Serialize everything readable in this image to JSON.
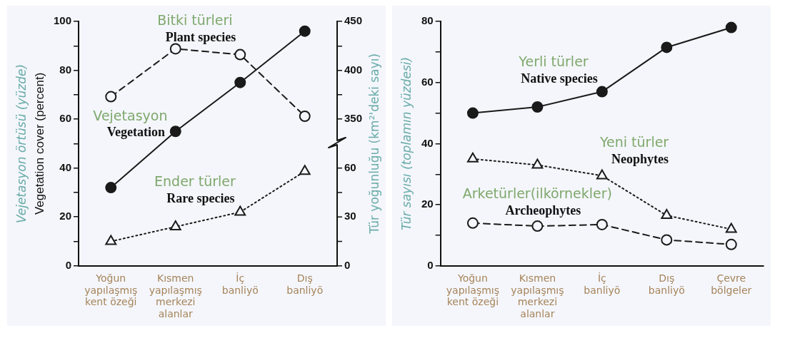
{
  "chart_data": [
    {
      "type": "line",
      "categories": [
        "Yoğun\nyapılaşmış\nkent özeği",
        "Kısmen\nyapılaşmış\nmerkezi\nalanlar",
        "İç\nbanliyö",
        "Dış\nbanliyö"
      ],
      "ylabel": "Vejetasyon örtüsü (yüzde)\nVegetation cover (percent)",
      "y2label": "Tür yoğunluğu (km²'deki sayı)",
      "ylim": [
        0,
        100
      ],
      "yticks": [
        0,
        {
          "value": 10,
          "label": null
        },
        20,
        {
          "value": 30,
          "label": null
        },
        40,
        {
          "value": 50,
          "label": null
        },
        60,
        {
          "value": 70,
          "label": null
        },
        80,
        {
          "value": 90,
          "label": null
        },
        100
      ],
      "y2lim": [
        200,
        450
      ],
      "y2ticks": [
        350,
        {
          "value": 375,
          "label": null
        },
        400,
        {
          "value": 425,
          "label": null
        },
        450
      ],
      "y3lim": [
        0,
        150
      ],
      "y3ticks": [
        0,
        {
          "value": 15,
          "label": null
        },
        30,
        {
          "value": 45,
          "label": null
        },
        60
      ],
      "grid": false,
      "legend": false,
      "series": [
        {
          "name": "Vegetation",
          "color": "#1a1a1a",
          "values": [
            32,
            55,
            75,
            96
          ],
          "marker": "circle",
          "line_style": "solid"
        },
        {
          "name": "Plant species",
          "color": "#1a1a1a",
          "axis": "y2",
          "values": [
            373,
            422,
            416,
            353
          ],
          "marker": "circle",
          "line_style": "dashed"
        },
        {
          "name": "Rare species",
          "color": "#1a1a1a",
          "axis": "y3",
          "values": [
            15,
            24,
            33,
            58
          ],
          "marker": "triangle",
          "line_style": "dotted"
        }
      ],
      "annotations": [
        "Vejetasyon",
        "Bitki türleri",
        "Ender türler"
      ]
    },
    {
      "type": "line",
      "categories": [
        "Yoğun\nyapılaşmış\nkent özeği",
        "Kısmen\nyapılaşmış\nmerkezi\nalanlar",
        "İç\nbanliyö",
        "Dış\nbanliyö",
        "Çevre\nbölgeler"
      ],
      "ylabel": "Tür sayısı (toplamın yüzdesi)",
      "ylim": [
        0,
        80
      ],
      "yticks": [
        0,
        {
          "value": 10,
          "label": null
        },
        20,
        {
          "value": 30,
          "label": null
        },
        40,
        {
          "value": 50,
          "label": null
        },
        60,
        {
          "value": 70,
          "label": null
        },
        80
      ],
      "grid": false,
      "legend": false,
      "series": [
        {
          "name": "Native species",
          "color": "#1a1a1a",
          "values": [
            50,
            52,
            57,
            71.5,
            78
          ],
          "marker": "circle",
          "line_style": "solid"
        },
        {
          "name": "Neophytes",
          "color": "#1a1a1a",
          "values": [
            35,
            33,
            29.5,
            16.5,
            12
          ],
          "marker": "triangle",
          "line_style": "dotted"
        },
        {
          "name": "Archeophytes",
          "color": "#1a1a1a",
          "values": [
            14,
            13,
            13.5,
            8.5,
            7
          ],
          "marker": "circle",
          "line_style": "dashed"
        }
      ],
      "annotations": [
        "Yerli türler",
        "Yeni türler",
        "Arketürler(ilkörnekler)"
      ]
    }
  ]
}
